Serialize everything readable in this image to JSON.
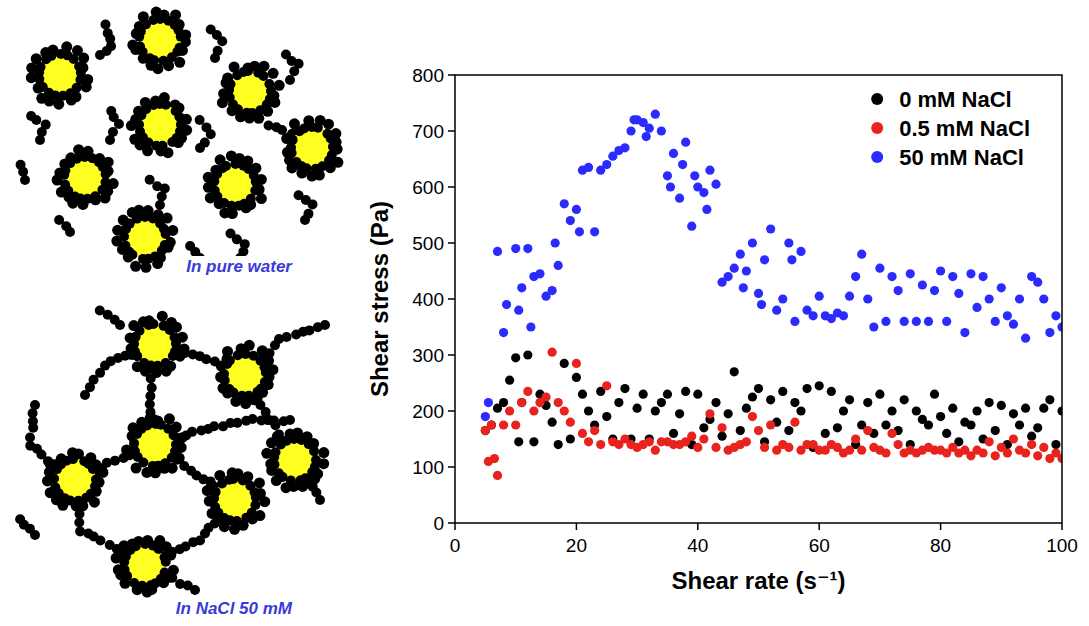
{
  "chart_data": {
    "type": "scatter",
    "xlabel": "Shear rate (s⁻¹)",
    "ylabel": "Shear stress (Pa)",
    "xlim": [
      0,
      100
    ],
    "xticks": [
      0,
      20,
      40,
      60,
      80,
      100
    ],
    "ylim": [
      0,
      800
    ],
    "yticks": [
      0,
      100,
      200,
      300,
      400,
      500,
      600,
      700,
      800
    ],
    "legend": "upper right",
    "marker": "circle",
    "grid": false,
    "series": [
      {
        "name": "0 mM NaCl",
        "color": "#000000",
        "x": [
          5,
          6,
          7,
          8,
          9,
          10,
          10.5,
          11,
          12,
          13,
          14,
          15,
          16,
          17,
          18,
          19,
          20,
          21,
          22,
          23,
          24,
          25,
          26,
          27,
          28,
          29,
          30,
          31,
          32,
          33,
          34,
          35,
          36,
          37,
          38,
          39,
          40,
          41,
          42,
          43,
          44,
          45,
          46,
          47,
          48,
          49,
          50,
          51,
          52,
          53,
          54,
          55,
          56,
          57,
          58,
          59,
          60,
          61,
          62,
          63,
          64,
          65,
          66,
          67,
          68,
          69,
          70,
          71,
          72,
          73,
          74,
          75,
          76,
          77,
          78,
          79,
          80,
          81,
          82,
          83,
          84,
          85,
          86,
          87,
          88,
          89,
          90,
          91,
          92,
          93,
          94,
          95,
          96,
          97,
          98,
          99,
          100
        ],
        "values": [
          165,
          175,
          205,
          215,
          255,
          295,
          145,
          215,
          300,
          145,
          230,
          210,
          180,
          140,
          285,
          150,
          260,
          230,
          200,
          175,
          235,
          190,
          150,
          215,
          240,
          150,
          205,
          230,
          150,
          200,
          215,
          230,
          160,
          195,
          235,
          140,
          230,
          170,
          185,
          215,
          155,
          195,
          270,
          165,
          205,
          225,
          240,
          145,
          220,
          180,
          235,
          165,
          215,
          200,
          240,
          135,
          245,
          160,
          235,
          170,
          200,
          220,
          140,
          175,
          215,
          160,
          230,
          175,
          200,
          165,
          220,
          140,
          200,
          185,
          175,
          230,
          190,
          160,
          205,
          145,
          180,
          175,
          200,
          150,
          215,
          165,
          210,
          140,
          195,
          175,
          205,
          155,
          170,
          205,
          220,
          140,
          200
        ]
      },
      {
        "name": "0.5 mM NaCl",
        "color": "#e8221c",
        "x": [
          5,
          5.5,
          6,
          6.5,
          7,
          8,
          9,
          10,
          11,
          12,
          13,
          14,
          15,
          16,
          17,
          18,
          19,
          20,
          21,
          22,
          23,
          24,
          25,
          26,
          27,
          28,
          29,
          30,
          31,
          32,
          33,
          34,
          35,
          36,
          37,
          38,
          39,
          40,
          41,
          42,
          43,
          44,
          45,
          46,
          47,
          48,
          49,
          50,
          51,
          52,
          53,
          54,
          55,
          56,
          57,
          58,
          59,
          60,
          61,
          62,
          63,
          64,
          65,
          66,
          67,
          68,
          69,
          70,
          71,
          72,
          73,
          74,
          75,
          76,
          77,
          78,
          79,
          80,
          81,
          82,
          83,
          84,
          85,
          86,
          87,
          88,
          89,
          90,
          91,
          92,
          93,
          94,
          95,
          96,
          97,
          98,
          99,
          100
        ],
        "values": [
          165,
          110,
          175,
          115,
          85,
          175,
          200,
          175,
          215,
          235,
          200,
          215,
          225,
          305,
          215,
          200,
          180,
          285,
          160,
          145,
          165,
          140,
          245,
          145,
          140,
          150,
          140,
          135,
          140,
          145,
          130,
          145,
          145,
          140,
          140,
          145,
          155,
          135,
          150,
          195,
          135,
          170,
          130,
          135,
          140,
          145,
          190,
          165,
          135,
          175,
          130,
          140,
          135,
          180,
          130,
          140,
          140,
          130,
          130,
          140,
          135,
          125,
          130,
          150,
          130,
          165,
          135,
          130,
          125,
          160,
          140,
          125,
          130,
          125,
          130,
          135,
          130,
          130,
          125,
          135,
          125,
          130,
          120,
          130,
          125,
          145,
          120,
          135,
          125,
          150,
          130,
          125,
          140,
          120,
          135,
          115,
          125,
          115
        ]
      },
      {
        "name": "50 mM NaCl",
        "color": "#2b2bff",
        "x": [
          5,
          5.5,
          7,
          8,
          8.5,
          10,
          10.5,
          11,
          12,
          12.5,
          13,
          14,
          15,
          16,
          16.5,
          17,
          18,
          19,
          20,
          20.5,
          21,
          22,
          23,
          24,
          25,
          26,
          27,
          28,
          29,
          29.5,
          30,
          31,
          31.5,
          32,
          33,
          34,
          35,
          35.5,
          36,
          37,
          37.5,
          38,
          39,
          39.5,
          40,
          41,
          41.5,
          42,
          43,
          44,
          45,
          46,
          47,
          47.5,
          48,
          49,
          50,
          50.5,
          51,
          52,
          53,
          54,
          55,
          55.5,
          56,
          57,
          58,
          59,
          60,
          61,
          62,
          63,
          64,
          65,
          66,
          67,
          68,
          69,
          70,
          71,
          72,
          73,
          74,
          75,
          76,
          77,
          78,
          79,
          80,
          81,
          82,
          83,
          84,
          85,
          86,
          87,
          88,
          89,
          90,
          91,
          92,
          93,
          94,
          95,
          96,
          97,
          98,
          99,
          100
        ],
        "values": [
          190,
          215,
          485,
          340,
          390,
          490,
          380,
          420,
          490,
          350,
          440,
          445,
          405,
          415,
          500,
          460,
          570,
          540,
          560,
          520,
          630,
          635,
          520,
          630,
          640,
          655,
          665,
          670,
          700,
          720,
          720,
          715,
          690,
          705,
          730,
          700,
          620,
          600,
          660,
          580,
          640,
          680,
          530,
          620,
          600,
          590,
          560,
          630,
          605,
          430,
          440,
          455,
          480,
          420,
          450,
          500,
          410,
          390,
          470,
          525,
          380,
          400,
          500,
          470,
          360,
          485,
          380,
          370,
          405,
          370,
          365,
          375,
          370,
          405,
          440,
          480,
          400,
          350,
          455,
          360,
          440,
          415,
          360,
          445,
          360,
          425,
          360,
          415,
          450,
          360,
          440,
          410,
          340,
          445,
          385,
          440,
          400,
          360,
          420,
          370,
          355,
          400,
          330,
          440,
          430,
          400,
          340,
          370,
          350
        ]
      }
    ]
  },
  "diagram": {
    "panels": [
      {
        "caption": "In pure water"
      },
      {
        "caption": "In NaCl 50 mM"
      }
    ]
  }
}
